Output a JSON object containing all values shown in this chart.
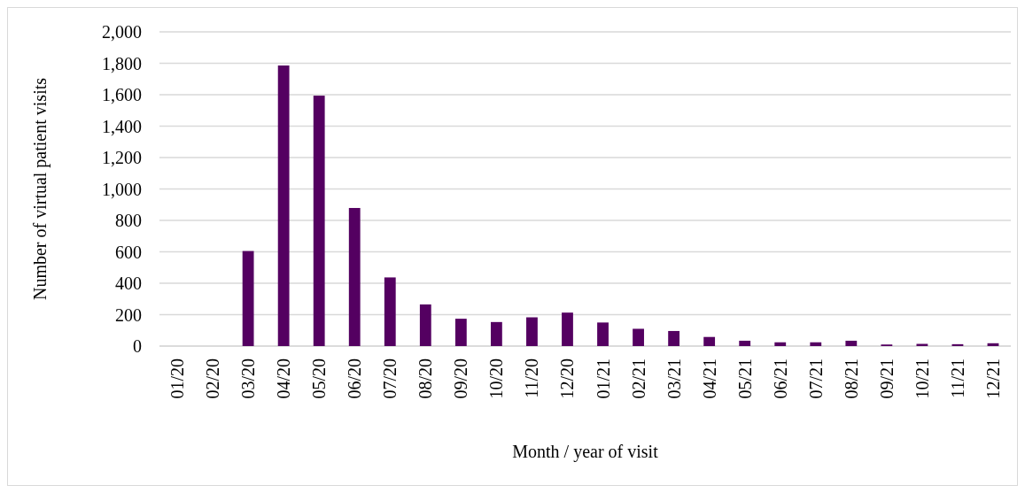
{
  "chart_data": {
    "type": "bar",
    "xlabel": "Month / year of visit",
    "ylabel": "Number of virtual patient visits",
    "categories": [
      "01/20",
      "02/20",
      "03/20",
      "04/20",
      "05/20",
      "06/20",
      "07/20",
      "08/20",
      "09/20",
      "10/20",
      "11/20",
      "12/20",
      "01/21",
      "02/21",
      "03/21",
      "04/21",
      "05/21",
      "06/21",
      "07/21",
      "08/21",
      "09/21",
      "10/21",
      "11/21",
      "12/21"
    ],
    "values": [
      0,
      0,
      605,
      1786,
      1594,
      879,
      437,
      265,
      174,
      153,
      183,
      213,
      150,
      110,
      96,
      58,
      34,
      24,
      24,
      34,
      10,
      14,
      12,
      18
    ],
    "color": "#540061",
    "ylim": [
      0,
      2000
    ],
    "yticks": [
      {
        "value": 0,
        "label": "0"
      },
      {
        "value": 200,
        "label": "200"
      },
      {
        "value": 400,
        "label": "400"
      },
      {
        "value": 600,
        "label": "600"
      },
      {
        "value": 800,
        "label": "800"
      },
      {
        "value": 1000,
        "label": "1,000"
      },
      {
        "value": 1200,
        "label": "1,200"
      },
      {
        "value": 1400,
        "label": "1,400"
      },
      {
        "value": 1600,
        "label": "1,600"
      },
      {
        "value": 1800,
        "label": "1,800"
      },
      {
        "value": 2000,
        "label": "2,000"
      }
    ],
    "grid": "y"
  }
}
